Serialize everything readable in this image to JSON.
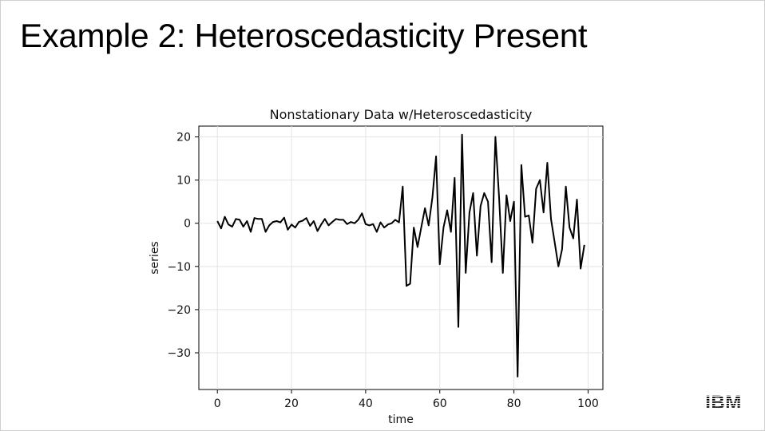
{
  "slide": {
    "title": "Example 2: Heteroscedasticity Present",
    "logo_text": "IBM"
  },
  "chart_data": {
    "type": "line",
    "title": "Nonstationary Data w/Heteroscedasticity",
    "xlabel": "time",
    "ylabel": "series",
    "xlim": [
      -5,
      104
    ],
    "ylim": [
      -38.5,
      22.5
    ],
    "xticks": [
      0,
      20,
      40,
      60,
      80,
      100
    ],
    "yticks": [
      20,
      10,
      0,
      -10,
      -20,
      -30
    ],
    "xtick_labels": [
      "0",
      "20",
      "40",
      "60",
      "80",
      "100"
    ],
    "ytick_labels": [
      "20",
      "10",
      "0",
      "−10",
      "−20",
      "−30"
    ],
    "grid": true,
    "line_color": "#000000",
    "series": [
      {
        "x": [
          0,
          1,
          2,
          3,
          4,
          5,
          6,
          7,
          8,
          9,
          10,
          11,
          12,
          13,
          14,
          15,
          16,
          17,
          18,
          19,
          20,
          21,
          22,
          23,
          24,
          25,
          26,
          27,
          28,
          29,
          30,
          31,
          32,
          33,
          34,
          35,
          36,
          37,
          38,
          39,
          40,
          41,
          42,
          43,
          44,
          45,
          46,
          47,
          48,
          49,
          50,
          51,
          52,
          53,
          54,
          55,
          56,
          57,
          58,
          59,
          60,
          61,
          62,
          63,
          64,
          65,
          66,
          67,
          68,
          69,
          70,
          71,
          72,
          73,
          74,
          75,
          76,
          77,
          78,
          79,
          80,
          81,
          82,
          83,
          84,
          85,
          86,
          87,
          88,
          89,
          90,
          91,
          92,
          93,
          94,
          95,
          96,
          97,
          98,
          99
        ],
        "y": [
          0.5,
          -1.2,
          1.5,
          -0.3,
          -0.8,
          1.0,
          0.8,
          -0.8,
          0.5,
          -2.0,
          1.2,
          1.0,
          1.0,
          -2.0,
          -0.5,
          0.3,
          0.5,
          0.2,
          1.3,
          -1.5,
          -0.3,
          -1.0,
          0.3,
          0.6,
          1.2,
          -0.6,
          0.5,
          -1.8,
          -0.3,
          1.0,
          -0.5,
          0.3,
          1.0,
          0.8,
          0.8,
          -0.2,
          0.3,
          0.0,
          0.8,
          2.3,
          -0.2,
          -0.5,
          -0.2,
          -2.0,
          0.2,
          -1.0,
          -0.3,
          0.0,
          0.8,
          0.2,
          8.5,
          -14.5,
          -14.0,
          -1.0,
          -5.5,
          -1.0,
          3.5,
          -0.5,
          6.0,
          15.5,
          -9.5,
          -1.0,
          3.0,
          -2.0,
          10.5,
          -24.0,
          20.5,
          -11.5,
          2.5,
          7.0,
          -7.5,
          4.0,
          7.0,
          5.0,
          -9.0,
          20.0,
          6.0,
          -11.5,
          6.5,
          0.5,
          5.0,
          -35.5,
          13.5,
          1.5,
          1.8,
          -4.5,
          8.0,
          10.0,
          2.5,
          14.0,
          1.0,
          -4.5,
          -10.0,
          -6.0,
          8.5,
          -1.0,
          -3.5,
          5.5,
          -10.5,
          -5.0
        ]
      }
    ]
  }
}
